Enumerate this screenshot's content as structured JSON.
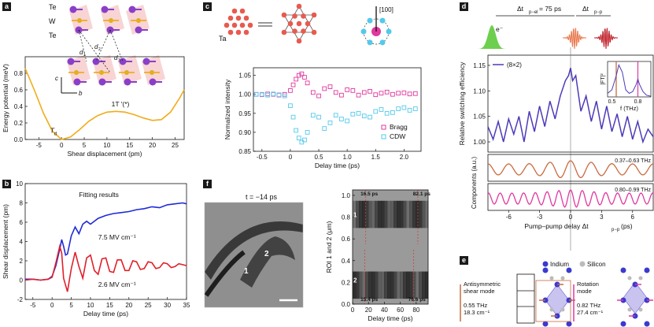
{
  "panels": {
    "a": {
      "letter": "a",
      "atoms": {
        "te1": "Te",
        "w": "W",
        "te2": "Te",
        "d1": "d",
        "d1_sub": "1",
        "d2": "d",
        "d2_sub": "2",
        "d3": "d",
        "d3_sub": "3",
        "axis_c": "c",
        "axis_b": "b"
      },
      "labels": {
        "td": "T",
        "td_sub": "d",
        "onet": "1T ′(*)"
      },
      "chart_data": {
        "type": "line",
        "title": "",
        "xlabel": "Shear displacement (pm)",
        "ylabel": "Energy potential (meV)",
        "xlim": [
          -8,
          27
        ],
        "ylim": [
          0,
          1.0
        ],
        "xticks": [
          -5,
          0,
          5,
          10,
          15,
          20,
          25
        ],
        "yticks": [
          0,
          0.2,
          0.4,
          0.6,
          0.8
        ],
        "series": [
          {
            "color": "#f0ad1a",
            "x": [
              -8,
              -6,
              -4,
              -2,
              0,
              2,
              4,
              6,
              8,
              10,
              12,
              14,
              16,
              18,
              20,
              22,
              24,
              26,
              27
            ],
            "y": [
              0.86,
              0.6,
              0.32,
              0.1,
              0.0,
              0.03,
              0.12,
              0.22,
              0.29,
              0.33,
              0.34,
              0.33,
              0.3,
              0.26,
              0.23,
              0.24,
              0.33,
              0.5,
              0.6
            ]
          }
        ]
      }
    },
    "b": {
      "letter": "b",
      "chart_data": {
        "type": "line",
        "title": "Fitting results",
        "xlabel": "Delay time (ps)",
        "ylabel": "Shear displacement (pm)",
        "xlim": [
          -7,
          35
        ],
        "ylim": [
          -2,
          10
        ],
        "xticks": [
          -5,
          0,
          5,
          10,
          15,
          20,
          25,
          30,
          35
        ],
        "yticks": [
          -2,
          0,
          2,
          4,
          6,
          8,
          10
        ],
        "series": [
          {
            "name": "7.5 MV cm⁻¹",
            "color": "#1f2bd6",
            "x": [
              -7,
              -5,
              -3,
              -1,
              0,
              1,
              2,
              2.5,
              3,
              3.5,
              4,
              5,
              6,
              7,
              8,
              9,
              10,
              12,
              14,
              16,
              18,
              20,
              22,
              24,
              26,
              28,
              30,
              32,
              34,
              35
            ],
            "y": [
              0.1,
              0.1,
              0.0,
              0.1,
              0.4,
              1.5,
              3.2,
              4.2,
              3.5,
              2.6,
              2.7,
              4.6,
              5.5,
              4.8,
              5.8,
              6.1,
              5.8,
              6.4,
              6.7,
              6.9,
              7.0,
              7.1,
              7.3,
              7.4,
              7.6,
              7.5,
              7.8,
              7.9,
              8.0,
              7.9
            ]
          },
          {
            "name": "2.6 MV cm⁻¹",
            "color": "#e0202a",
            "x": [
              -7,
              -5,
              -3,
              -1,
              0,
              1,
              2,
              2.5,
              3,
              4,
              5,
              6,
              7,
              8,
              9,
              10,
              11,
              12,
              13,
              14,
              15,
              16,
              17,
              18,
              19,
              20,
              21,
              22,
              23,
              24,
              25,
              26,
              27,
              28,
              29,
              30,
              31,
              32,
              33,
              34,
              35
            ],
            "y": [
              0.0,
              0.1,
              0.0,
              0.1,
              0.3,
              1.8,
              3.5,
              2.8,
              0.2,
              -1.2,
              1.2,
              2.9,
              1.4,
              0.2,
              2.3,
              2.6,
              1.0,
              0.6,
              2.2,
              2.3,
              0.9,
              0.8,
              2.1,
              2.1,
              1.0,
              1.0,
              2.0,
              1.9,
              1.1,
              1.2,
              1.9,
              1.8,
              1.2,
              1.3,
              1.8,
              1.7,
              1.3,
              1.4,
              1.7,
              1.6,
              1.5
            ]
          }
        ]
      }
    },
    "c": {
      "letter": "c",
      "ta_label": "Ta",
      "direction": "[100]",
      "chart_data": {
        "type": "scatter",
        "title": "",
        "xlabel": "Delay time (ps)",
        "ylabel": "Normalized intensity",
        "xlim": [
          -0.65,
          2.3
        ],
        "ylim": [
          0.85,
          1.07
        ],
        "xticks": [
          -0.5,
          0,
          0.5,
          1.0,
          1.5,
          2.0
        ],
        "yticks": [
          0.85,
          0.9,
          0.95,
          1.0,
          1.05
        ],
        "series": [
          {
            "name": "Bragg",
            "color": "#e0389e",
            "x": [
              -0.6,
              -0.5,
              -0.4,
              -0.3,
              -0.2,
              -0.1,
              0,
              0.05,
              0.1,
              0.15,
              0.2,
              0.25,
              0.3,
              0.4,
              0.5,
              0.6,
              0.7,
              0.8,
              0.9,
              1.0,
              1.1,
              1.2,
              1.3,
              1.4,
              1.5,
              1.6,
              1.7,
              1.8,
              1.9,
              2.0,
              2.1,
              2.2
            ],
            "y": [
              1.0,
              0.999,
              1.001,
              1.0,
              0.998,
              1.0,
              1.01,
              1.025,
              1.04,
              1.05,
              1.054,
              1.045,
              1.03,
              1.005,
              0.996,
              1.015,
              1.02,
              1.005,
              0.998,
              1.012,
              1.01,
              0.998,
              1.005,
              1.008,
              0.999,
              1.003,
              1.006,
              1.0,
              1.003,
              1.004,
              1.001,
              1.002
            ]
          },
          {
            "name": "CDW",
            "color": "#54c9ea",
            "x": [
              -0.6,
              -0.5,
              -0.4,
              -0.3,
              -0.2,
              -0.1,
              0,
              0.05,
              0.1,
              0.15,
              0.2,
              0.25,
              0.3,
              0.4,
              0.5,
              0.6,
              0.7,
              0.8,
              0.9,
              1.0,
              1.1,
              1.2,
              1.3,
              1.4,
              1.5,
              1.6,
              1.7,
              1.8,
              1.9,
              2.0,
              2.1,
              2.2
            ],
            "y": [
              1.0,
              1.0,
              0.998,
              1.001,
              0.999,
              0.996,
              0.97,
              0.94,
              0.905,
              0.885,
              0.874,
              0.88,
              0.9,
              0.945,
              0.94,
              0.91,
              0.925,
              0.945,
              0.935,
              0.93,
              0.948,
              0.95,
              0.943,
              0.94,
              0.955,
              0.96,
              0.95,
              0.952,
              0.962,
              0.965,
              0.958,
              0.962
            ]
          }
        ],
        "legend": "lower-right"
      }
    },
    "d": {
      "letter": "d",
      "delay_el": "Δt",
      "delay_el_sub": "p−el",
      "delay_el_val": " = 75 ps",
      "delay_pp": "Δt",
      "delay_pp_sub": "p−p",
      "electron": "e⁻",
      "main": {
        "chart_data": {
          "type": "line",
          "title": "",
          "xlabel": "",
          "ylabel": "Relative switching efficiency",
          "xlim": [
            -8,
            8
          ],
          "ylim": [
            0.98,
            1.17
          ],
          "yticks": [
            1.0,
            1.05,
            1.1,
            1.15
          ],
          "series": [
            {
              "name": "(8×2)",
              "color": "#4b3bb8",
              "x": [
                -8,
                -7.5,
                -7,
                -6.5,
                -6,
                -5.5,
                -5,
                -4.5,
                -4,
                -3.5,
                -3,
                -2.5,
                -2,
                -1.5,
                -1,
                -0.5,
                -0.2,
                0,
                0.2,
                0.5,
                1,
                1.5,
                2,
                2.5,
                3,
                3.5,
                4,
                4.5,
                5,
                5.5,
                6,
                6.5,
                7,
                7.5,
                8
              ],
              "y": [
                1.03,
                1.005,
                1.04,
                1.0,
                1.045,
                1.015,
                1.05,
                1.0,
                1.06,
                1.02,
                1.07,
                1.03,
                1.08,
                1.045,
                1.09,
                1.12,
                1.13,
                1.145,
                1.12,
                1.13,
                1.06,
                1.09,
                1.04,
                1.08,
                1.025,
                1.07,
                1.02,
                1.055,
                1.01,
                1.05,
                1.005,
                1.04,
                1.0,
                1.025,
                1.01
              ]
            }
          ]
        }
      },
      "inset": {
        "chart_data": {
          "type": "line",
          "title": "",
          "xlabel": "f (THz)",
          "ylabel": "|FT|²",
          "xlim": [
            0.45,
            0.95
          ],
          "xticks": [
            0.5,
            0.8
          ],
          "series": [
            {
              "color": "#4b3bb8",
              "x": [
                0.45,
                0.5,
                0.55,
                0.58,
                0.62,
                0.66,
                0.7,
                0.74,
                0.78,
                0.8,
                0.82,
                0.86,
                0.9,
                0.95
              ],
              "y": [
                0.1,
                0.2,
                0.6,
                0.9,
                0.7,
                0.2,
                0.1,
                0.15,
                0.35,
                0.5,
                0.35,
                0.15,
                0.05,
                0.02
              ]
            }
          ],
          "markers": [
            {
              "x": 0.55,
              "color": "#c06030"
            },
            {
              "x": 0.8,
              "color": "#e0389e"
            }
          ]
        }
      },
      "components": {
        "chart_data": {
          "type": "line",
          "title": "",
          "xlabel": "Pump–pump delay Δt",
          "xlabel_sub": "p−p",
          "xlabel_unit": " (ps)",
          "ylabel": "Components (a.u.)",
          "xlim": [
            -8,
            8
          ],
          "xticks": [
            -6,
            -3,
            0,
            3,
            6
          ],
          "series": [
            {
              "name": "0.37–0.63 THz",
              "color": "#c96a3e",
              "freq": 0.5
            },
            {
              "name": "0.80–0.99 THz",
              "color": "#e0389e",
              "freq": 0.88
            }
          ]
        }
      }
    },
    "e": {
      "letter": "e",
      "legend": {
        "indium": "Indium",
        "silicon": "Silicon"
      },
      "mode1": {
        "name": "Antisymmetric shear mode",
        "freq": "0.55 THz",
        "wn": "18.3 cm⁻¹"
      },
      "mode2": {
        "name": "Rotation mode",
        "freq": "0.82 THz",
        "wn": "27.4 cm⁻¹"
      }
    },
    "f": {
      "letter": "f",
      "time_label": "t = −14 ps",
      "region1": "1",
      "region2": "2",
      "roi_labels": {
        "top": "16.5 ps",
        "top_right": "82.1 ps",
        "bottom": "15.4 ps",
        "bottom_right": "76.6 ps",
        "r1": "1",
        "r2": "2"
      },
      "chart_data": {
        "type": "heatmap",
        "title": "",
        "xlabel": "Delay time (ps)",
        "ylabel": "ROI 1 and 2 (μm)",
        "xlim": [
          0,
          95
        ],
        "ylim": [
          0,
          1.05
        ],
        "xticks": [
          0,
          20,
          40,
          60,
          80
        ],
        "yticks": [
          0,
          0.2,
          0.4,
          0.6,
          0.8,
          1.0
        ]
      }
    }
  }
}
